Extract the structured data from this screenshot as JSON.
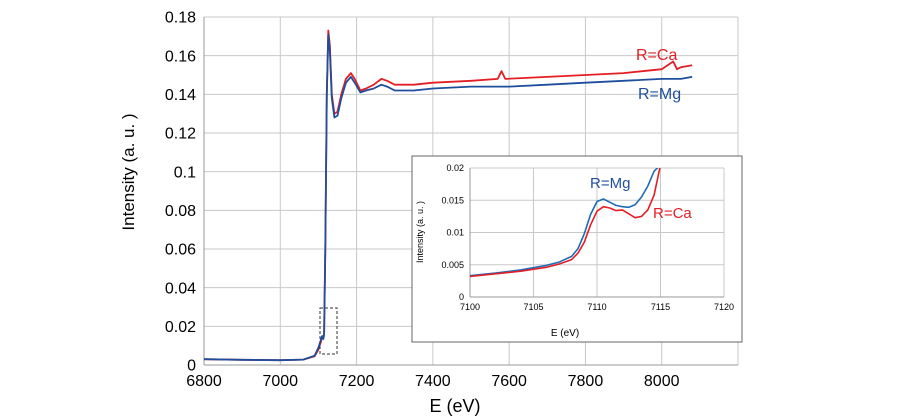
{
  "chart_data": [
    {
      "type": "line",
      "title": "",
      "xlabel": "E (eV)",
      "ylabel": "Intensity (a. u. )",
      "xlim": [
        6800,
        8200
      ],
      "ylim": [
        0,
        0.18
      ],
      "x_ticks": [
        "6800",
        "7000",
        "7200",
        "7400",
        "7600",
        "7800",
        "8000"
      ],
      "y_ticks": [
        "0",
        "0.02",
        "0.04",
        "0.06",
        "0.08",
        "0.1",
        "0.12",
        "0.14",
        "0.16",
        "0.18"
      ],
      "grid": true,
      "series": [
        {
          "name": "R=Ca",
          "color": "#e31e24",
          "x": [
            6800,
            6900,
            7000,
            7060,
            7090,
            7100,
            7105,
            7110,
            7113,
            7115,
            7118,
            7122,
            7126,
            7130,
            7135,
            7142,
            7150,
            7160,
            7172,
            7185,
            7195,
            7210,
            7225,
            7245,
            7265,
            7280,
            7300,
            7350,
            7400,
            7500,
            7570,
            7580,
            7590,
            7700,
            7800,
            7900,
            8000,
            8030,
            8040,
            8050,
            8080
          ],
          "y": [
            0.003,
            0.0027,
            0.0025,
            0.0028,
            0.0045,
            0.008,
            0.011,
            0.014,
            0.014,
            0.016,
            0.06,
            0.14,
            0.173,
            0.165,
            0.14,
            0.13,
            0.131,
            0.14,
            0.148,
            0.151,
            0.148,
            0.142,
            0.143,
            0.145,
            0.148,
            0.147,
            0.145,
            0.145,
            0.146,
            0.147,
            0.148,
            0.152,
            0.148,
            0.149,
            0.15,
            0.151,
            0.153,
            0.157,
            0.153,
            0.154,
            0.155
          ]
        },
        {
          "name": "R=Mg",
          "color": "#1f4e9c",
          "x": [
            6800,
            6900,
            7000,
            7060,
            7090,
            7100,
            7105,
            7110,
            7113,
            7115,
            7118,
            7122,
            7126,
            7130,
            7135,
            7142,
            7150,
            7160,
            7172,
            7185,
            7195,
            7210,
            7225,
            7245,
            7265,
            7280,
            7300,
            7350,
            7400,
            7500,
            7600,
            7700,
            7800,
            7900,
            8000,
            8050,
            8080
          ],
          "y": [
            0.003,
            0.0027,
            0.0025,
            0.0028,
            0.0048,
            0.009,
            0.012,
            0.015,
            0.0135,
            0.016,
            0.06,
            0.14,
            0.171,
            0.162,
            0.138,
            0.128,
            0.129,
            0.138,
            0.146,
            0.149,
            0.146,
            0.141,
            0.142,
            0.143,
            0.145,
            0.144,
            0.142,
            0.142,
            0.143,
            0.144,
            0.144,
            0.145,
            0.146,
            0.147,
            0.148,
            0.148,
            0.149
          ]
        }
      ]
    },
    {
      "type": "line",
      "title": "",
      "xlabel": "E (eV)",
      "ylabel": "Intensity (a. u. )",
      "xlim": [
        7100,
        7120
      ],
      "ylim": [
        0,
        0.02
      ],
      "x_ticks": [
        "7100",
        "7105",
        "7110",
        "7115",
        "7120"
      ],
      "y_ticks": [
        "0",
        "0.005",
        "0.01",
        "0.015",
        "0.02"
      ],
      "grid": true,
      "series": [
        {
          "name": "R=Mg",
          "color": "#1f6bb5",
          "x": [
            7100,
            7102,
            7104,
            7106,
            7107,
            7108,
            7108.5,
            7109,
            7109.5,
            7110,
            7110.5,
            7111,
            7111.5,
            7112,
            7112.5,
            7113,
            7113.5,
            7114,
            7114.5,
            7115
          ],
          "y": [
            0.0033,
            0.0037,
            0.0042,
            0.0049,
            0.0054,
            0.0063,
            0.0075,
            0.0098,
            0.0128,
            0.0148,
            0.0152,
            0.0147,
            0.0142,
            0.014,
            0.0139,
            0.0143,
            0.0155,
            0.0172,
            0.0195,
            0.0205
          ]
        },
        {
          "name": "R=Ca",
          "color": "#e31e24",
          "x": [
            7100,
            7102,
            7104,
            7106,
            7107,
            7108,
            7108.5,
            7109,
            7109.5,
            7110,
            7110.5,
            7111,
            7111.5,
            7112,
            7112.5,
            7113,
            7113.5,
            7114,
            7114.5,
            7115
          ],
          "y": [
            0.0032,
            0.0036,
            0.004,
            0.0046,
            0.0051,
            0.0058,
            0.0068,
            0.0085,
            0.0112,
            0.0133,
            0.014,
            0.0138,
            0.0134,
            0.0135,
            0.0129,
            0.0123,
            0.0125,
            0.0135,
            0.0158,
            0.0205
          ]
        }
      ]
    }
  ]
}
